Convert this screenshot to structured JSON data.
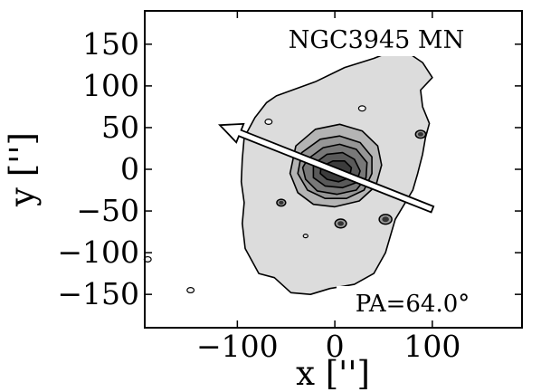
{
  "chart_data": {
    "type": "contour",
    "title": "NGC3945 MN",
    "annotation": "PA=64.0°",
    "xlabel": "x ['']",
    "ylabel": "y ['']",
    "xlim": [
      -195,
      192
    ],
    "ylim": [
      -190,
      190
    ],
    "x_ticks": [
      -100,
      0,
      100
    ],
    "x_tick_labels": [
      "−100",
      "0",
      "100"
    ],
    "y_ticks": [
      150,
      100,
      50,
      0,
      -50,
      -100,
      -150
    ],
    "y_tick_labels": [
      "150",
      "100",
      "50",
      "0",
      "−50",
      "−100",
      "−150"
    ],
    "position_angle_deg": 64.0,
    "pa_arrow": {
      "from": [
        100,
        -48
      ],
      "to": [
        -118,
        53
      ]
    },
    "contour_levels": [
      {
        "fill": "#dcdcdc",
        "points": [
          [
            -60,
            88
          ],
          [
            -20,
            105
          ],
          [
            10,
            122
          ],
          [
            40,
            133
          ],
          [
            55,
            140
          ],
          [
            75,
            140
          ],
          [
            90,
            128
          ],
          [
            100,
            110
          ],
          [
            88,
            95
          ],
          [
            90,
            75
          ],
          [
            97,
            55
          ],
          [
            93,
            38
          ],
          [
            90,
            18
          ],
          [
            85,
            -5
          ],
          [
            80,
            -25
          ],
          [
            62,
            -60
          ],
          [
            52,
            -100
          ],
          [
            40,
            -125
          ],
          [
            20,
            -138
          ],
          [
            -5,
            -143
          ],
          [
            -25,
            -150
          ],
          [
            -45,
            -148
          ],
          [
            -62,
            -130
          ],
          [
            -78,
            -125
          ],
          [
            -92,
            -95
          ],
          [
            -95,
            -65
          ],
          [
            -93,
            -40
          ],
          [
            -96,
            -15
          ],
          [
            -95,
            12
          ],
          [
            -93,
            38
          ],
          [
            -82,
            62
          ],
          [
            -70,
            80
          ]
        ]
      },
      {
        "fill": "#b4b4b4",
        "points": [
          [
            -40,
            28
          ],
          [
            -20,
            48
          ],
          [
            5,
            54
          ],
          [
            28,
            46
          ],
          [
            44,
            28
          ],
          [
            48,
            5
          ],
          [
            42,
            -20
          ],
          [
            25,
            -38
          ],
          [
            0,
            -45
          ],
          [
            -22,
            -42
          ],
          [
            -38,
            -28
          ],
          [
            -46,
            -5
          ]
        ]
      },
      {
        "fill": "#969696",
        "points": [
          [
            -34,
            20
          ],
          [
            -15,
            36
          ],
          [
            5,
            40
          ],
          [
            26,
            32
          ],
          [
            38,
            15
          ],
          [
            38,
            -5
          ],
          [
            30,
            -25
          ],
          [
            12,
            -35
          ],
          [
            -10,
            -35
          ],
          [
            -28,
            -25
          ],
          [
            -38,
            -5
          ]
        ]
      },
      {
        "fill": "#787878",
        "points": [
          [
            -28,
            12
          ],
          [
            -12,
            26
          ],
          [
            5,
            30
          ],
          [
            22,
            24
          ],
          [
            33,
            8
          ],
          [
            32,
            -10
          ],
          [
            22,
            -25
          ],
          [
            2,
            -30
          ],
          [
            -18,
            -26
          ],
          [
            -30,
            -12
          ],
          [
            -33,
            2
          ]
        ]
      },
      {
        "fill": "#5a5a5a",
        "points": [
          [
            -22,
            6
          ],
          [
            -8,
            18
          ],
          [
            8,
            20
          ],
          [
            20,
            12
          ],
          [
            26,
            -2
          ],
          [
            22,
            -16
          ],
          [
            8,
            -22
          ],
          [
            -10,
            -20
          ],
          [
            -22,
            -10
          ]
        ]
      },
      {
        "fill": "#3c3c3c",
        "points": [
          [
            -14,
            3
          ],
          [
            -2,
            10
          ],
          [
            10,
            10
          ],
          [
            17,
            2
          ],
          [
            15,
            -10
          ],
          [
            4,
            -15
          ],
          [
            -8,
            -12
          ],
          [
            -15,
            -5
          ]
        ]
      }
    ],
    "compact_sources": [
      {
        "x": 88,
        "y": 42,
        "r": 4
      },
      {
        "x": 52,
        "y": -60,
        "r": 5
      },
      {
        "x": 6,
        "y": -65,
        "r": 4.5
      },
      {
        "x": -55,
        "y": -40,
        "r": 3.5
      }
    ],
    "faint_contours": [
      {
        "x": 28,
        "y": 73,
        "r": 3
      },
      {
        "x": -68,
        "y": 57,
        "r": 3
      },
      {
        "x": -148,
        "y": -145,
        "r": 3
      },
      {
        "x": -30,
        "y": -80,
        "r": 2
      },
      {
        "x": -192,
        "y": -108,
        "r": 3
      }
    ]
  }
}
